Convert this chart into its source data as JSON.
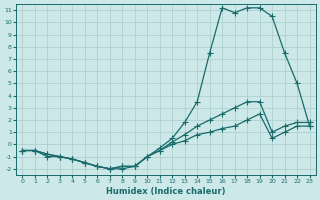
{
  "xlabel": "Humidex (Indice chaleur)",
  "bg_color": "#cce8e8",
  "grid_color": "#aacccc",
  "line_color": "#1a6b6b",
  "xlim": [
    -0.5,
    23.5
  ],
  "ylim": [
    -2.5,
    11.5
  ],
  "yticks": [
    -2,
    -1,
    0,
    1,
    2,
    3,
    4,
    5,
    6,
    7,
    8,
    9,
    10,
    11
  ],
  "xticks": [
    0,
    1,
    2,
    3,
    4,
    5,
    6,
    7,
    8,
    9,
    10,
    11,
    12,
    13,
    14,
    15,
    16,
    17,
    18,
    19,
    20,
    21,
    22,
    23
  ],
  "line1_x": [
    0,
    1,
    2,
    3,
    4,
    5,
    6,
    7,
    8,
    9,
    10,
    11,
    12,
    13,
    14,
    15,
    16,
    17,
    18,
    19,
    20,
    21,
    22,
    23
  ],
  "line1_y": [
    -0.5,
    -0.5,
    -1.0,
    -1.0,
    -1.2,
    -1.5,
    -1.8,
    -2.0,
    -2.0,
    -1.8,
    -1.0,
    -0.3,
    0.5,
    1.8,
    3.5,
    7.5,
    11.2,
    10.8,
    11.2,
    11.2,
    10.5,
    7.5,
    5.0,
    1.5
  ],
  "line2_x": [
    0,
    1,
    2,
    3,
    4,
    5,
    6,
    7,
    8,
    9,
    10,
    11,
    12,
    13,
    14,
    15,
    16,
    17,
    18,
    19,
    20,
    21,
    22,
    23
  ],
  "line2_y": [
    -0.5,
    -0.5,
    -0.8,
    -1.0,
    -1.2,
    -1.5,
    -1.8,
    -2.0,
    -1.8,
    -1.8,
    -1.0,
    -0.5,
    0.2,
    0.8,
    1.5,
    2.0,
    2.5,
    3.0,
    3.5,
    3.5,
    1.0,
    1.5,
    1.8,
    1.8
  ],
  "line3_x": [
    0,
    1,
    2,
    3,
    4,
    5,
    6,
    7,
    8,
    9,
    10,
    11,
    12,
    13,
    14,
    15,
    16,
    17,
    18,
    19,
    20,
    21,
    22,
    23
  ],
  "line3_y": [
    -0.5,
    -0.5,
    -0.8,
    -1.0,
    -1.2,
    -1.5,
    -1.8,
    -2.0,
    -1.8,
    -1.8,
    -1.0,
    -0.5,
    0.0,
    0.3,
    0.8,
    1.0,
    1.3,
    1.5,
    2.0,
    2.5,
    0.5,
    1.0,
    1.5,
    1.5
  ]
}
